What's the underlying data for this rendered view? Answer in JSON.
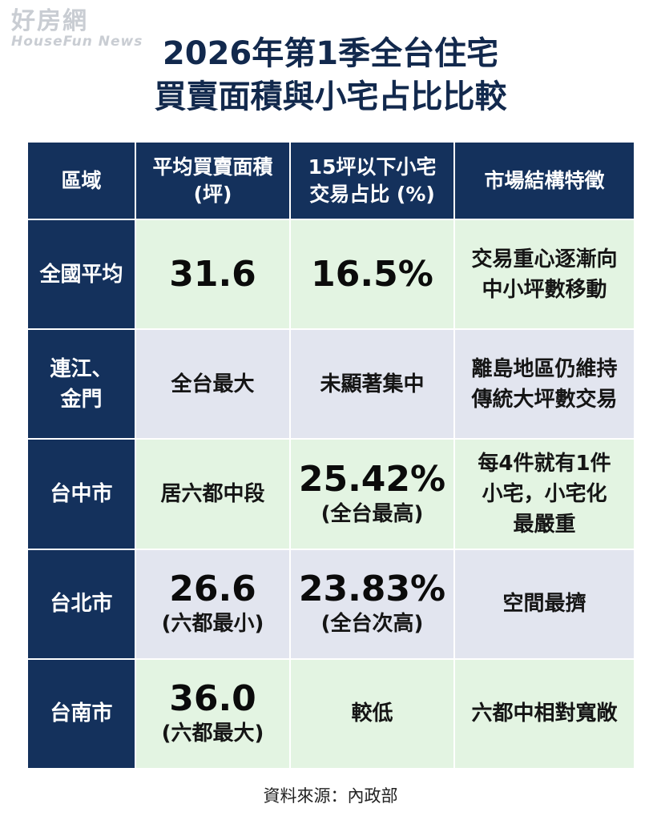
{
  "watermark": {
    "main": "好房網",
    "sub": "HouseFun News"
  },
  "title": {
    "line1": "2026年第1季全台住宅",
    "line2": "買賣面積與小宅占比比較"
  },
  "table": {
    "headers": [
      {
        "line1": "區域",
        "line2": ""
      },
      {
        "line1": "平均買賣面積",
        "line2": "(坪)"
      },
      {
        "line1": "15坪以下小宅",
        "line2": "交易占比 (%)"
      },
      {
        "line1": "市場結構特徵",
        "line2": ""
      }
    ],
    "rows": [
      {
        "region": [
          "全國平均"
        ],
        "area": {
          "main": "31.6",
          "note": ""
        },
        "share": {
          "main": "16.5%",
          "note": ""
        },
        "feature": [
          "交易重心逐漸向",
          "中小坪數移動"
        ]
      },
      {
        "region": [
          "連江、",
          "金門"
        ],
        "area": {
          "main": "全台最大",
          "note": ""
        },
        "share": {
          "main": "未顯著集中",
          "note": ""
        },
        "feature": [
          "離島地區仍維持",
          "傳統大坪數交易"
        ]
      },
      {
        "region": [
          "台中市"
        ],
        "area": {
          "main": "居六都中段",
          "note": ""
        },
        "share": {
          "main": "25.42%",
          "note": "(全台最高)"
        },
        "feature": [
          "每4件就有1件",
          "小宅，小宅化",
          "最嚴重"
        ]
      },
      {
        "region": [
          "台北市"
        ],
        "area": {
          "main": "26.6",
          "note": "(六都最小)"
        },
        "share": {
          "main": "23.83%",
          "note": "(全台次高)"
        },
        "feature": [
          "空間最擠"
        ]
      },
      {
        "region": [
          "台南市"
        ],
        "area": {
          "main": "36.0",
          "note": "(六都最大)"
        },
        "share": {
          "main": "較低",
          "note": ""
        },
        "feature": [
          "六都中相對寬敞"
        ]
      }
    ]
  },
  "source": "資料來源：內政部",
  "colors": {
    "navy": "#14315c",
    "green_row": "#e3f4e2",
    "gray_row": "#e2e5ef",
    "title": "#12294d"
  }
}
